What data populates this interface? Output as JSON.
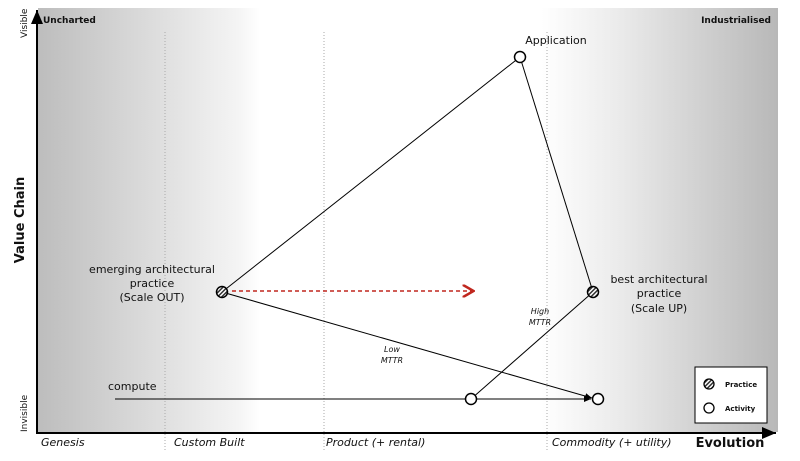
{
  "axes": {
    "y_label": "Value Chain",
    "y_top": "Visible",
    "y_bottom": "Invisible",
    "x_label": "Evolution",
    "stages": [
      "Genesis",
      "Custom Built",
      "Product (+ rental)",
      "Commodity (+ utility)"
    ]
  },
  "corners": {
    "left": "Uncharted",
    "right": "Industrialised"
  },
  "nodes": {
    "application": "Application",
    "emerging": [
      "emerging architectural",
      "practice",
      "(Scale OUT)"
    ],
    "best": [
      "best architectural",
      "practice",
      "(Scale UP)"
    ],
    "compute": "compute"
  },
  "annotations": {
    "low": [
      "Low",
      "MTTR"
    ],
    "high": [
      "High",
      "MTTR"
    ]
  },
  "legend": {
    "practice": "Practice",
    "activity": "Activity"
  },
  "colors": {
    "movement_arrow": "#c0271e"
  }
}
